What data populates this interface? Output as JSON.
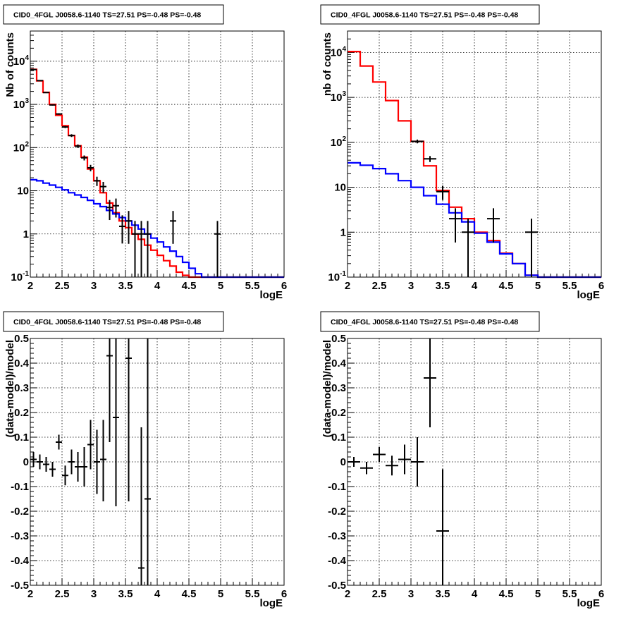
{
  "chart_data": [
    {
      "type": "line",
      "title": "CID0_4FGL J0058.6-1140 TS=27.51 PS=-0.48 PS=-0.48",
      "xlabel": "logE",
      "ylabel": "Nb of counts",
      "xlim": [
        2,
        6
      ],
      "ylim": [
        0.1,
        50000
      ],
      "yscale": "log",
      "grid": true,
      "x_ticks": [
        "2",
        "2.5",
        "3",
        "3.5",
        "4",
        "4.5",
        "5",
        "5.5",
        "6"
      ],
      "y_ticks": [
        "10^-1",
        "1",
        "10",
        "10^2",
        "10^3",
        "10^4"
      ],
      "bin_edges": [
        2.0,
        2.1,
        2.2,
        2.3,
        2.4,
        2.5,
        2.6,
        2.7,
        2.8,
        2.9,
        3.0,
        3.1,
        3.2,
        3.3,
        3.4,
        3.5,
        3.6,
        3.7,
        3.8,
        3.9,
        4.0,
        4.1,
        4.2,
        4.3,
        4.4,
        4.5,
        4.6,
        4.7,
        4.8,
        4.9,
        5.0,
        5.1,
        5.2,
        5.3,
        5.4,
        5.5,
        5.6,
        5.7,
        5.8,
        5.9,
        6.0
      ],
      "series": [
        {
          "color": "#ff0000",
          "values": [
            6500,
            3500,
            1900,
            1000,
            560,
            320,
            190,
            110,
            60,
            32,
            17,
            9,
            5.2,
            3.1,
            2.0,
            1.4,
            1.0,
            0.75,
            0.55,
            0.42,
            0.32,
            0.24,
            0.18,
            0.13,
            0.11,
            0.1,
            0.1,
            0.1,
            0.1,
            0.1,
            0.1,
            0.1,
            0.1,
            0.1,
            0.1,
            0.1,
            0.1,
            0.1,
            0.1,
            0.1
          ]
        },
        {
          "color": "#0000ff",
          "values": [
            18,
            17,
            15,
            13.5,
            12,
            10.5,
            9,
            8,
            7,
            6,
            5,
            4.3,
            3.5,
            2.9,
            2.4,
            2.0,
            1.6,
            1.3,
            1.0,
            0.8,
            0.65,
            0.5,
            0.4,
            0.3,
            0.22,
            0.16,
            0.12,
            0.1,
            0.1,
            0.1,
            0.1,
            0.1,
            0.1,
            0.1,
            0.1,
            0.1,
            0.1,
            0.1,
            0.1,
            0.1
          ]
        }
      ],
      "points": [
        {
          "x": 2.05,
          "y": 6400,
          "yerr_lo": 80,
          "yerr_hi": 80
        },
        {
          "x": 2.15,
          "y": 3550,
          "yerr_lo": 60,
          "yerr_hi": 60
        },
        {
          "x": 2.25,
          "y": 1880,
          "yerr_lo": 43,
          "yerr_hi": 43
        },
        {
          "x": 2.35,
          "y": 970,
          "yerr_lo": 31,
          "yerr_hi": 31
        },
        {
          "x": 2.45,
          "y": 600,
          "yerr_lo": 24,
          "yerr_hi": 24
        },
        {
          "x": 2.55,
          "y": 300,
          "yerr_lo": 17,
          "yerr_hi": 17
        },
        {
          "x": 2.65,
          "y": 190,
          "yerr_lo": 14,
          "yerr_hi": 14
        },
        {
          "x": 2.75,
          "y": 108,
          "yerr_lo": 10,
          "yerr_hi": 10
        },
        {
          "x": 2.85,
          "y": 58,
          "yerr_lo": 7.6,
          "yerr_hi": 7.6
        },
        {
          "x": 2.95,
          "y": 34,
          "yerr_lo": 5.8,
          "yerr_hi": 5.8
        },
        {
          "x": 3.05,
          "y": 17,
          "yerr_lo": 4.1,
          "yerr_hi": 4.1
        },
        {
          "x": 3.15,
          "y": 12.5,
          "yerr_lo": 3.5,
          "yerr_hi": 3.5
        },
        {
          "x": 3.25,
          "y": 4.1,
          "yerr_lo": 2.0,
          "yerr_hi": 2.0
        },
        {
          "x": 3.35,
          "y": 4.5,
          "yerr_lo": 2.1,
          "yerr_hi": 2.1
        },
        {
          "x": 3.45,
          "y": 1.5,
          "yerr_lo": 0.9,
          "yerr_hi": 1.2
        },
        {
          "x": 3.55,
          "y": 2.0,
          "yerr_lo": 1.41,
          "yerr_hi": 1.41
        },
        {
          "x": 3.65,
          "y": 1.0,
          "yerr_lo": 0.999,
          "yerr_hi": 1.0
        },
        {
          "x": 3.75,
          "y": 1.0,
          "yerr_lo": 0.999,
          "yerr_hi": 1.0
        },
        {
          "x": 3.85,
          "y": 1.0,
          "yerr_lo": 0.999,
          "yerr_hi": 1.0
        },
        {
          "x": 4.25,
          "y": 2.0,
          "yerr_lo": 1.41,
          "yerr_hi": 1.41
        },
        {
          "x": 4.95,
          "y": 1.0,
          "yerr_lo": 0.999,
          "yerr_hi": 1.0
        }
      ]
    },
    {
      "type": "line",
      "title": "CID0_4FGL J0058.6-1140 TS=27.51 PS=-0.48 PS=-0.48",
      "xlabel": "logE",
      "ylabel": "nb of counts",
      "xlim": [
        2,
        6
      ],
      "ylim": [
        0.1,
        30000
      ],
      "yscale": "log",
      "grid": true,
      "x_ticks": [
        "2",
        "2.5",
        "3",
        "3.5",
        "4",
        "4.5",
        "5",
        "5.5",
        "6"
      ],
      "y_ticks": [
        "10^-1",
        "1",
        "10",
        "10^2",
        "10^3",
        "10^4"
      ],
      "bin_edges": [
        2.0,
        2.2,
        2.4,
        2.6,
        2.8,
        3.0,
        3.2,
        3.4,
        3.6,
        3.8,
        4.0,
        4.2,
        4.4,
        4.6,
        4.8,
        5.0,
        5.2,
        5.4,
        5.6,
        5.8,
        6.0
      ],
      "series": [
        {
          "color": "#ff0000",
          "values": [
            10500,
            5000,
            2200,
            850,
            300,
            105,
            30,
            8.5,
            3.6,
            2.0,
            1.0,
            0.65,
            0.34,
            0.2,
            0.11,
            0.1,
            0.1,
            0.1,
            0.1,
            0.1
          ]
        },
        {
          "color": "#0000ff",
          "values": [
            35,
            31,
            26,
            20,
            14,
            10,
            6.5,
            4.2,
            2.7,
            1.7,
            0.95,
            0.6,
            0.33,
            0.2,
            0.11,
            0.1,
            0.1,
            0.1,
            0.1,
            0.1
          ]
        }
      ],
      "points": [
        {
          "x": 3.1,
          "y": 105,
          "yerr_lo": 10,
          "yerr_hi": 10
        },
        {
          "x": 3.3,
          "y": 43,
          "yerr_lo": 6.5,
          "yerr_hi": 6.5
        },
        {
          "x": 3.5,
          "y": 8.0,
          "yerr_lo": 2.8,
          "yerr_hi": 2.8
        },
        {
          "x": 3.7,
          "y": 2.0,
          "yerr_lo": 1.41,
          "yerr_hi": 1.41
        },
        {
          "x": 3.9,
          "y": 1.0,
          "yerr_lo": 0.999,
          "yerr_hi": 1.0
        },
        {
          "x": 4.3,
          "y": 2.0,
          "yerr_lo": 1.41,
          "yerr_hi": 1.41
        },
        {
          "x": 4.9,
          "y": 1.0,
          "yerr_lo": 0.999,
          "yerr_hi": 1.0
        }
      ]
    },
    {
      "type": "scatter",
      "title": "CID0_4FGL J0058.6-1140 TS=27.51 PS=-0.48 PS=-0.48",
      "xlabel": "logE",
      "ylabel": "(data-model)/model",
      "xlim": [
        2,
        6
      ],
      "ylim": [
        -0.5,
        0.5
      ],
      "yscale": "linear",
      "grid": true,
      "x_ticks": [
        "2",
        "2.5",
        "3",
        "3.5",
        "4",
        "4.5",
        "5",
        "5.5",
        "6"
      ],
      "y_ticks": [
        "-0.5",
        "-0.4",
        "-0.3",
        "-0.2",
        "-0.1",
        "0",
        "0.1",
        "0.2",
        "0.3",
        "0.4",
        "0.5"
      ],
      "points": [
        {
          "x": 2.05,
          "y": 0.01,
          "yerr_lo": 0.03,
          "yerr_hi": 0.03
        },
        {
          "x": 2.15,
          "y": 0.0,
          "yerr_lo": 0.03,
          "yerr_hi": 0.03
        },
        {
          "x": 2.25,
          "y": -0.01,
          "yerr_lo": 0.03,
          "yerr_hi": 0.03
        },
        {
          "x": 2.35,
          "y": -0.03,
          "yerr_lo": 0.03,
          "yerr_hi": 0.03
        },
        {
          "x": 2.45,
          "y": 0.08,
          "yerr_lo": 0.03,
          "yerr_hi": 0.03
        },
        {
          "x": 2.55,
          "y": -0.055,
          "yerr_lo": 0.04,
          "yerr_hi": 0.04
        },
        {
          "x": 2.65,
          "y": 0.0,
          "yerr_lo": 0.05,
          "yerr_hi": 0.05
        },
        {
          "x": 2.75,
          "y": -0.02,
          "yerr_lo": 0.06,
          "yerr_hi": 0.06
        },
        {
          "x": 2.85,
          "y": -0.02,
          "yerr_lo": 0.08,
          "yerr_hi": 0.08
        },
        {
          "x": 2.95,
          "y": 0.07,
          "yerr_lo": 0.1,
          "yerr_hi": 0.1
        },
        {
          "x": 3.05,
          "y": 0.0,
          "yerr_lo": 0.13,
          "yerr_hi": 0.13
        },
        {
          "x": 3.15,
          "y": 0.01,
          "yerr_lo": 0.17,
          "yerr_hi": 0.16
        },
        {
          "x": 3.25,
          "y": 0.43,
          "yerr_lo": 0.35,
          "yerr_hi": 0.35
        },
        {
          "x": 3.35,
          "y": 0.18,
          "yerr_lo": 0.36,
          "yerr_hi": 0.45
        },
        {
          "x": 3.55,
          "y": 0.42,
          "yerr_lo": 0.58,
          "yerr_hi": 0.6
        },
        {
          "x": 3.75,
          "y": -0.43,
          "yerr_lo": 0.2,
          "yerr_hi": 0.57
        },
        {
          "x": 3.85,
          "y": -0.15,
          "yerr_lo": 0.5,
          "yerr_hi": 0.9
        }
      ]
    },
    {
      "type": "scatter",
      "title": "CID0_4FGL J0058.6-1140 TS=27.51 PS=-0.48 PS=-0.48",
      "xlabel": "logE",
      "ylabel": "(data-model)/model",
      "xlim": [
        2,
        6
      ],
      "ylim": [
        -0.5,
        0.5
      ],
      "yscale": "linear",
      "grid": true,
      "x_ticks": [
        "2",
        "2.5",
        "3",
        "3.5",
        "4",
        "4.5",
        "5",
        "5.5",
        "6"
      ],
      "y_ticks": [
        "-0.5",
        "-0.4",
        "-0.3",
        "-0.2",
        "-0.1",
        "0",
        "0.1",
        "0.2",
        "0.3",
        "0.4",
        "0.5"
      ],
      "points": [
        {
          "x": 2.1,
          "y": 0.0,
          "yerr_lo": 0.02,
          "yerr_hi": 0.02
        },
        {
          "x": 2.3,
          "y": -0.025,
          "yerr_lo": 0.025,
          "yerr_hi": 0.025
        },
        {
          "x": 2.5,
          "y": 0.03,
          "yerr_lo": 0.03,
          "yerr_hi": 0.03
        },
        {
          "x": 2.7,
          "y": -0.015,
          "yerr_lo": 0.04,
          "yerr_hi": 0.04
        },
        {
          "x": 2.9,
          "y": 0.01,
          "yerr_lo": 0.06,
          "yerr_hi": 0.06
        },
        {
          "x": 3.1,
          "y": 0.0,
          "yerr_lo": 0.1,
          "yerr_hi": 0.1
        },
        {
          "x": 3.3,
          "y": 0.34,
          "yerr_lo": 0.2,
          "yerr_hi": 0.2
        },
        {
          "x": 3.5,
          "y": -0.28,
          "yerr_lo": 0.25,
          "yerr_hi": 0.25
        }
      ]
    }
  ]
}
